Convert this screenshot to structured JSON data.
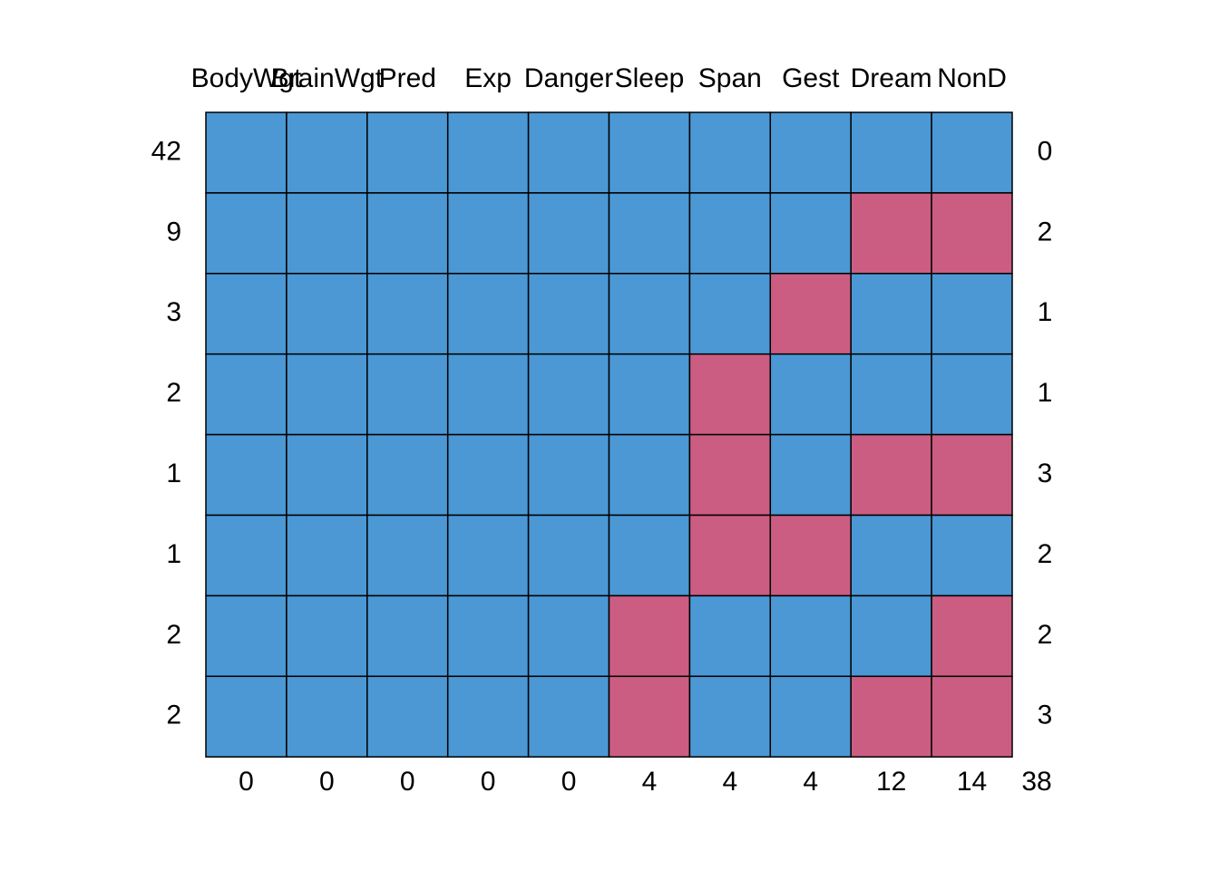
{
  "chart_data": {
    "type": "heatmap",
    "title": "",
    "columns": [
      "BodyWgt",
      "BrainWgt",
      "Pred",
      "Exp",
      "Danger",
      "Sleep",
      "Span",
      "Gest",
      "Dream",
      "NonD"
    ],
    "rows": [
      {
        "count": 42,
        "pattern": [
          1,
          1,
          1,
          1,
          1,
          1,
          1,
          1,
          1,
          1
        ],
        "missing": 0
      },
      {
        "count": 9,
        "pattern": [
          1,
          1,
          1,
          1,
          1,
          1,
          1,
          1,
          0,
          0
        ],
        "missing": 2
      },
      {
        "count": 3,
        "pattern": [
          1,
          1,
          1,
          1,
          1,
          1,
          1,
          0,
          1,
          1
        ],
        "missing": 1
      },
      {
        "count": 2,
        "pattern": [
          1,
          1,
          1,
          1,
          1,
          1,
          0,
          1,
          1,
          1
        ],
        "missing": 1
      },
      {
        "count": 1,
        "pattern": [
          1,
          1,
          1,
          1,
          1,
          1,
          0,
          1,
          0,
          0
        ],
        "missing": 3
      },
      {
        "count": 1,
        "pattern": [
          1,
          1,
          1,
          1,
          1,
          1,
          0,
          0,
          1,
          1
        ],
        "missing": 2
      },
      {
        "count": 2,
        "pattern": [
          1,
          1,
          1,
          1,
          1,
          0,
          1,
          1,
          1,
          0
        ],
        "missing": 2
      },
      {
        "count": 2,
        "pattern": [
          1,
          1,
          1,
          1,
          1,
          0,
          1,
          1,
          0,
          0
        ],
        "missing": 3
      }
    ],
    "column_missing_totals": [
      0,
      0,
      0,
      0,
      0,
      4,
      4,
      4,
      12,
      14
    ],
    "total_missing": 38,
    "colors": {
      "observed": "#4B98D4",
      "missing": "#CC5D82",
      "border": "#000000"
    }
  }
}
